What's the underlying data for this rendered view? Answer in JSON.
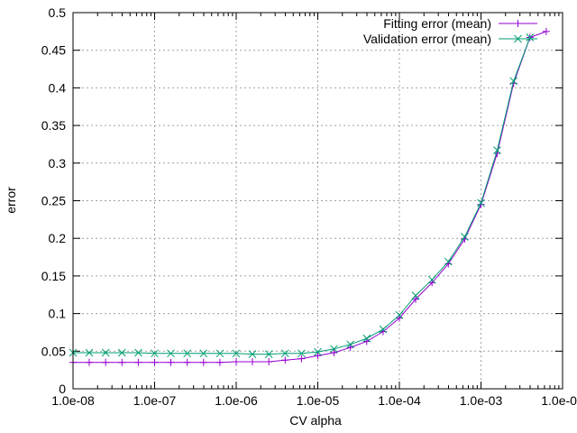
{
  "chart_data": {
    "type": "line",
    "xlabel": "CV alpha",
    "ylabel": "error",
    "x_scale": "log",
    "xlim": [
      1e-08,
      0.01
    ],
    "ylim": [
      0,
      0.5
    ],
    "grid": true,
    "legend_position": "top-right",
    "x_ticks": [
      {
        "value": 1e-08,
        "label": "1.0e-08"
      },
      {
        "value": 1e-07,
        "label": "1.0e-07"
      },
      {
        "value": 1e-06,
        "label": "1.0e-06"
      },
      {
        "value": 1e-05,
        "label": "1.0e-05"
      },
      {
        "value": 0.0001,
        "label": "1.0e-04"
      },
      {
        "value": 0.001,
        "label": "1.0e-03"
      },
      {
        "value": 0.01,
        "label": "1.0e-02"
      }
    ],
    "y_ticks": [
      {
        "value": 0,
        "label": "0"
      },
      {
        "value": 0.05,
        "label": "0.05"
      },
      {
        "value": 0.1,
        "label": "0.1"
      },
      {
        "value": 0.15,
        "label": "0.15"
      },
      {
        "value": 0.2,
        "label": "0.2"
      },
      {
        "value": 0.25,
        "label": "0.25"
      },
      {
        "value": 0.3,
        "label": "0.3"
      },
      {
        "value": 0.35,
        "label": "0.35"
      },
      {
        "value": 0.4,
        "label": "0.4"
      },
      {
        "value": 0.45,
        "label": "0.45"
      },
      {
        "value": 0.5,
        "label": "0.5"
      }
    ],
    "series": [
      {
        "name": "Fitting error (mean)",
        "color": "#9400d3",
        "marker": "plus",
        "x": [
          1e-08,
          1.58e-08,
          2.51e-08,
          3.98e-08,
          6.31e-08,
          1e-07,
          1.58e-07,
          2.51e-07,
          3.98e-07,
          6.31e-07,
          1e-06,
          1.58e-06,
          2.51e-06,
          3.98e-06,
          6.31e-06,
          1e-05,
          1.58e-05,
          2.51e-05,
          3.98e-05,
          6.31e-05,
          0.0001,
          0.000158,
          0.000251,
          0.000398,
          0.000631,
          0.001,
          0.00158,
          0.00251,
          0.00398,
          0.00631
        ],
        "y": [
          0.035,
          0.035,
          0.035,
          0.035,
          0.035,
          0.035,
          0.035,
          0.035,
          0.035,
          0.035,
          0.036,
          0.036,
          0.036,
          0.038,
          0.04,
          0.044,
          0.048,
          0.055,
          0.063,
          0.076,
          0.094,
          0.119,
          0.141,
          0.166,
          0.199,
          0.245,
          0.313,
          0.406,
          0.467,
          0.475
        ]
      },
      {
        "name": "Validation error (mean)",
        "color": "#009e73",
        "marker": "cross",
        "x": [
          1e-08,
          1.58e-08,
          2.51e-08,
          3.98e-08,
          6.31e-08,
          1e-07,
          1.58e-07,
          2.51e-07,
          3.98e-07,
          6.31e-07,
          1e-06,
          1.58e-06,
          2.51e-06,
          3.98e-06,
          6.31e-06,
          1e-05,
          1.58e-05,
          2.51e-05,
          3.98e-05,
          6.31e-05,
          0.0001,
          0.000158,
          0.000251,
          0.000398,
          0.000631,
          0.001,
          0.00158,
          0.00251,
          0.00398
        ],
        "y": [
          0.048,
          0.048,
          0.048,
          0.048,
          0.048,
          0.047,
          0.047,
          0.047,
          0.047,
          0.047,
          0.047,
          0.046,
          0.046,
          0.047,
          0.047,
          0.049,
          0.053,
          0.059,
          0.067,
          0.079,
          0.098,
          0.124,
          0.145,
          0.169,
          0.202,
          0.247,
          0.317,
          0.409,
          0.467
        ]
      }
    ]
  }
}
